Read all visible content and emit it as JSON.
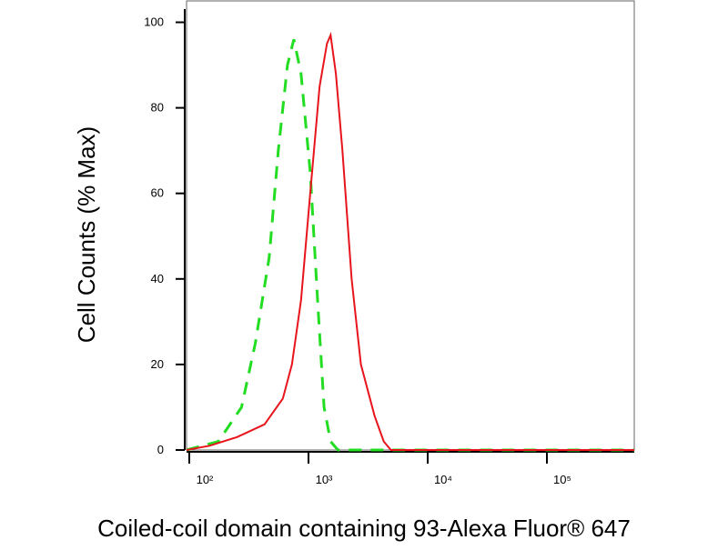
{
  "chart_data": {
    "type": "line",
    "xlabel": "Coiled-coil domain containing 93-Alexa Fluor® 647",
    "ylabel": "Cell Counts (% Max)",
    "xscale": "log",
    "xlim": [
      100,
      570000
    ],
    "ylim": [
      0,
      105
    ],
    "xticks": [
      {
        "value": 100,
        "label": "10²"
      },
      {
        "value": 1000,
        "label": "10³"
      },
      {
        "value": 10000,
        "label": "10⁴"
      },
      {
        "value": 100000,
        "label": "10⁵"
      }
    ],
    "yticks": [
      0,
      20,
      40,
      60,
      80,
      100
    ],
    "series": [
      {
        "color": "#22dd22",
        "dash": true,
        "x": [
          100,
          185,
          289,
          378,
          493,
          588,
          702,
          794,
          912,
          1091,
          1256,
          1425,
          1616,
          1862,
          570000
        ],
        "values": [
          0,
          2,
          10,
          25,
          45,
          70,
          90,
          96,
          88,
          65,
          35,
          10,
          2,
          0,
          0
        ]
      },
      {
        "color": "#e8141c",
        "dash": false,
        "x": [
          100,
          156,
          264,
          451,
          642,
          766,
          912,
          1091,
          1306,
          1506,
          1616,
          1790,
          2030,
          2427,
          2900,
          3776,
          4511,
          5180,
          570000
        ],
        "values": [
          0,
          1,
          3,
          6,
          12,
          20,
          35,
          60,
          85,
          95,
          97,
          88,
          70,
          40,
          20,
          8,
          2,
          0,
          0
        ]
      }
    ]
  }
}
